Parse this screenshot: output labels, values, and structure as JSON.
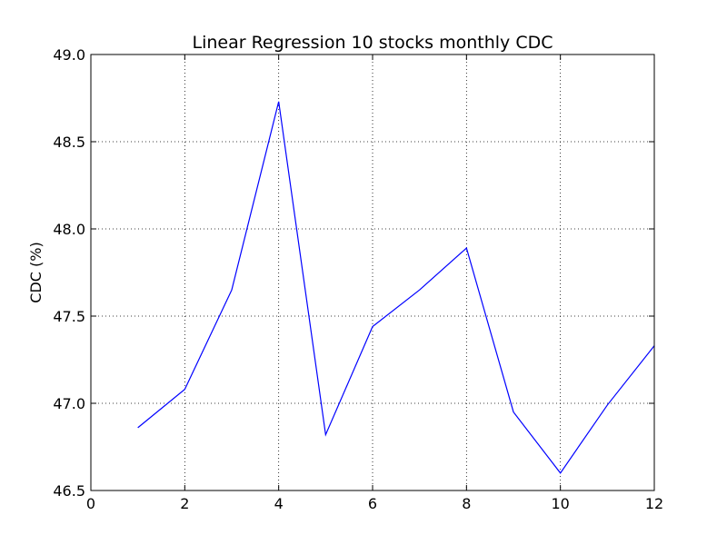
{
  "chart_data": {
    "type": "line",
    "title": "Linear Regression 10 stocks monthly CDC",
    "xlabel": "",
    "ylabel": "CDC (%)",
    "xlim": [
      0,
      12
    ],
    "ylim": [
      46.5,
      49.0
    ],
    "x_ticks": [
      0,
      2,
      4,
      6,
      8,
      10,
      12
    ],
    "y_ticks": [
      46.5,
      47.0,
      47.5,
      48.0,
      48.5,
      49.0
    ],
    "x_tick_labels": [
      "0",
      "2",
      "4",
      "6",
      "8",
      "10",
      "12"
    ],
    "y_tick_labels": [
      "46.5",
      "47.0",
      "47.5",
      "48.0",
      "48.5",
      "49.0"
    ],
    "grid": true,
    "series": [
      {
        "color": "#0000ff",
        "x": [
          1,
          2,
          3,
          4,
          5,
          6,
          7,
          8,
          9,
          10,
          11,
          12
        ],
        "y": [
          46.86,
          47.08,
          47.65,
          48.73,
          46.82,
          47.44,
          47.65,
          47.89,
          46.95,
          46.6,
          46.99,
          47.33
        ]
      }
    ]
  }
}
